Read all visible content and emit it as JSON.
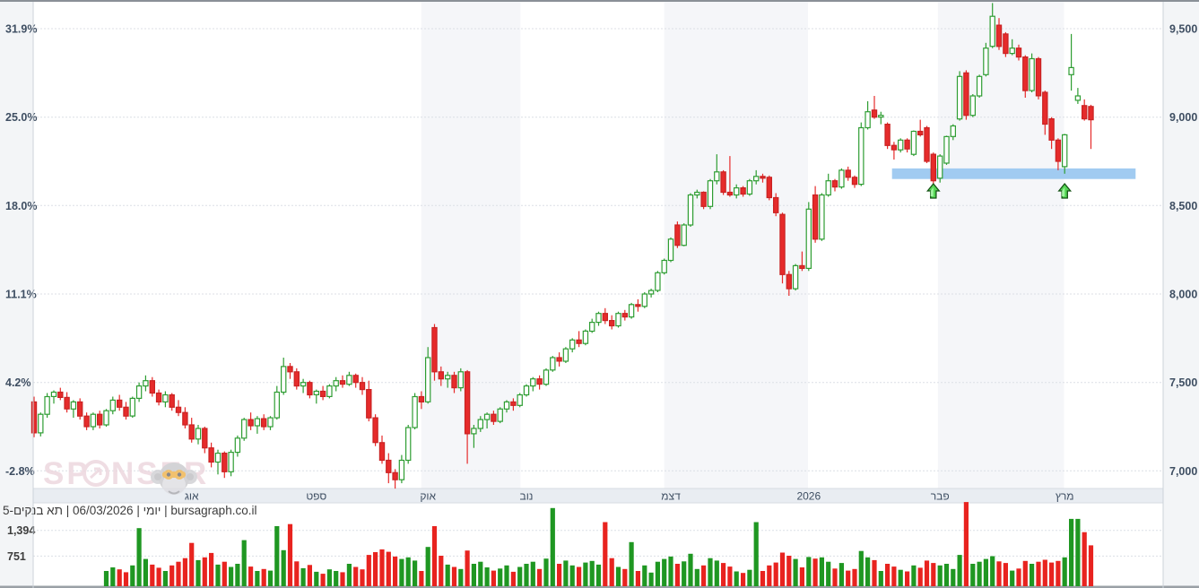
{
  "watermark": {
    "brand": "SPONSER",
    "mascot": "monkey-logo"
  },
  "footer": {
    "info_line": "יומי | 06/03/2026 | תא בנקים-5 | bursagraph.co.il"
  },
  "colors": {
    "up_green": "#2e9d32",
    "down_red": "#e62b2b",
    "down_red_dark": "#c92222",
    "vol_green": "#1f9722",
    "vol_red": "#e8231f",
    "support_blue": "#9cc8f0",
    "month_shade": "#f5f6f9",
    "margin_gray": "#f3f5f7",
    "axis_strip": "#e9edf2",
    "grid": "#dcdfe5",
    "axis_text": "#3e4e62",
    "footer_text": "#3c3c3c",
    "watermark_pink": "#ecd5dd"
  },
  "chart_data": {
    "type": "candlestick+volume",
    "instrument": "תא בנקים-5",
    "interval": "יומי",
    "as_of_date": "06/03/2026",
    "source": "bursagraph.co.il",
    "left_axis_percent": [
      {
        "label": "31.9%",
        "value": 9500
      },
      {
        "label": "25.0%",
        "value": 9000
      },
      {
        "label": "18.0%",
        "value": 8500
      },
      {
        "label": "11.1%",
        "value": 8000
      },
      {
        "label": "4.2%",
        "value": 7500
      },
      {
        "label": "-2.8%",
        "value": 7000
      }
    ],
    "right_axis_price": [
      {
        "label": "9,500",
        "value": 9500
      },
      {
        "label": "9,000",
        "value": 9000
      },
      {
        "label": "8,500",
        "value": 8500
      },
      {
        "label": "8,000",
        "value": 8000
      },
      {
        "label": "7,500",
        "value": 7500
      },
      {
        "label": "7,000",
        "value": 7000
      }
    ],
    "volume_axis": [
      {
        "label": "1,394",
        "value": 1394
      },
      {
        "label": "751",
        "value": 751
      }
    ],
    "x_axis_months": [
      {
        "label": "אוג",
        "index": 24
      },
      {
        "label": "ספט",
        "index": 43
      },
      {
        "label": "אוק",
        "index": 60
      },
      {
        "label": "נוב",
        "index": 75
      },
      {
        "label": "דצמ",
        "index": 97
      },
      {
        "label": "2026",
        "index": 118
      },
      {
        "label": "פבר",
        "index": 138
      },
      {
        "label": "מרץ",
        "index": 157
      }
    ],
    "shaded_month_bands": [
      [
        59.5,
        74.6
      ],
      [
        96.5,
        118.4
      ],
      [
        138.2,
        157.4
      ]
    ],
    "support_zone": {
      "price_top": 8710,
      "price_bottom": 8650,
      "start_index": 130.7,
      "end_index": 167.8
    },
    "signal_arrows": {
      "indices": [
        137,
        157
      ]
    },
    "volume_first_index": 11,
    "candles_format": [
      "open",
      "high",
      "low",
      "close",
      "volume"
    ],
    "candles": [
      [
        7390,
        7420,
        7190,
        7215,
        760
      ],
      [
        7215,
        7330,
        7195,
        7320,
        830
      ],
      [
        7320,
        7440,
        7300,
        7420,
        520
      ],
      [
        7420,
        7455,
        7380,
        7445,
        360
      ],
      [
        7445,
        7470,
        7400,
        7415,
        640
      ],
      [
        7415,
        7445,
        7330,
        7350,
        410
      ],
      [
        7350,
        7400,
        7300,
        7390,
        300
      ],
      [
        7390,
        7410,
        7290,
        7310,
        560
      ],
      [
        7310,
        7330,
        7230,
        7250,
        640
      ],
      [
        7250,
        7330,
        7230,
        7320,
        450
      ],
      [
        7320,
        7340,
        7240,
        7260,
        540
      ],
      [
        7260,
        7350,
        7250,
        7340,
        380
      ],
      [
        7340,
        7420,
        7320,
        7400,
        470
      ],
      [
        7400,
        7430,
        7340,
        7360,
        420
      ],
      [
        7360,
        7390,
        7290,
        7310,
        350
      ],
      [
        7310,
        7420,
        7300,
        7410,
        520
      ],
      [
        7410,
        7500,
        7390,
        7480,
        1450
      ],
      [
        7480,
        7540,
        7450,
        7510,
        680
      ],
      [
        7510,
        7530,
        7420,
        7440,
        540
      ],
      [
        7440,
        7460,
        7370,
        7390,
        460
      ],
      [
        7390,
        7450,
        7360,
        7430,
        380
      ],
      [
        7430,
        7440,
        7340,
        7360,
        520
      ],
      [
        7360,
        7400,
        7310,
        7330,
        610
      ],
      [
        7330,
        7360,
        7240,
        7260,
        700
      ],
      [
        7260,
        7300,
        7160,
        7180,
        1080
      ],
      [
        7180,
        7260,
        7150,
        7240,
        650
      ],
      [
        7240,
        7250,
        7100,
        7130,
        720
      ],
      [
        7130,
        7160,
        7020,
        7050,
        830
      ],
      [
        7050,
        7120,
        6980,
        7100,
        540
      ],
      [
        7100,
        7110,
        6960,
        6995,
        610
      ],
      [
        6995,
        7120,
        6970,
        7105,
        480
      ],
      [
        7105,
        7200,
        7080,
        7185,
        560
      ],
      [
        7185,
        7300,
        7170,
        7290,
        1150
      ],
      [
        7290,
        7330,
        7230,
        7255,
        490
      ],
      [
        7255,
        7310,
        7210,
        7295,
        380
      ],
      [
        7295,
        7320,
        7230,
        7250,
        430
      ],
      [
        7250,
        7310,
        7230,
        7300,
        390
      ],
      [
        7300,
        7480,
        7290,
        7445,
        1500
      ],
      [
        7445,
        7640,
        7430,
        7590,
        900
      ],
      [
        7590,
        7610,
        7520,
        7560,
        1550
      ],
      [
        7560,
        7580,
        7460,
        7480,
        620
      ],
      [
        7480,
        7520,
        7440,
        7500,
        450
      ],
      [
        7500,
        7510,
        7410,
        7430,
        530
      ],
      [
        7430,
        7460,
        7380,
        7450,
        360
      ],
      [
        7450,
        7480,
        7400,
        7420,
        310
      ],
      [
        7420,
        7490,
        7410,
        7480,
        420
      ],
      [
        7480,
        7530,
        7450,
        7510,
        380
      ],
      [
        7510,
        7540,
        7470,
        7490,
        350
      ],
      [
        7490,
        7560,
        7480,
        7540,
        560
      ],
      [
        7540,
        7550,
        7470,
        7500,
        480
      ],
      [
        7500,
        7530,
        7430,
        7460,
        420
      ],
      [
        7460,
        7510,
        7280,
        7300,
        780
      ],
      [
        7300,
        7320,
        7140,
        7160,
        850
      ],
      [
        7160,
        7200,
        7040,
        7060,
        920
      ],
      [
        7060,
        7100,
        6930,
        6990,
        860
      ],
      [
        6990,
        7010,
        6900,
        6950,
        740
      ],
      [
        6950,
        7090,
        6930,
        7060,
        680
      ],
      [
        7060,
        7260,
        7040,
        7245,
        720
      ],
      [
        7245,
        7440,
        7235,
        7420,
        640
      ],
      [
        7420,
        7450,
        7350,
        7390,
        380
      ],
      [
        7390,
        7700,
        7380,
        7640,
        980
      ],
      [
        7810,
        7830,
        7510,
        7560,
        1500
      ],
      [
        7560,
        7590,
        7480,
        7520,
        760
      ],
      [
        7520,
        7560,
        7470,
        7540,
        540
      ],
      [
        7540,
        7560,
        7440,
        7470,
        480
      ],
      [
        7470,
        7580,
        7450,
        7560,
        430
      ],
      [
        7560,
        7570,
        7040,
        7210,
        890
      ],
      [
        7210,
        7260,
        7130,
        7240,
        560
      ],
      [
        7240,
        7310,
        7220,
        7290,
        610
      ],
      [
        7290,
        7330,
        7240,
        7320,
        470
      ],
      [
        7320,
        7340,
        7260,
        7280,
        390
      ],
      [
        7280,
        7360,
        7270,
        7350,
        440
      ],
      [
        7350,
        7400,
        7330,
        7390,
        520
      ],
      [
        7390,
        7410,
        7340,
        7370,
        360
      ],
      [
        7370,
        7440,
        7360,
        7430,
        480
      ],
      [
        7430,
        7490,
        7420,
        7480,
        560
      ],
      [
        7480,
        7530,
        7450,
        7520,
        610
      ],
      [
        7520,
        7540,
        7460,
        7490,
        430
      ],
      [
        7490,
        7580,
        7480,
        7570,
        690
      ],
      [
        7570,
        7650,
        7560,
        7640,
        1950
      ],
      [
        7640,
        7670,
        7590,
        7620,
        560
      ],
      [
        7620,
        7700,
        7610,
        7690,
        640
      ],
      [
        7690,
        7750,
        7670,
        7740,
        520
      ],
      [
        7740,
        7790,
        7700,
        7720,
        480
      ],
      [
        7720,
        7800,
        7710,
        7790,
        590
      ],
      [
        7790,
        7860,
        7780,
        7840,
        630
      ],
      [
        7840,
        7900,
        7820,
        7890,
        540
      ],
      [
        7890,
        7920,
        7830,
        7850,
        1600
      ],
      [
        7850,
        7880,
        7800,
        7820,
        700
      ],
      [
        7820,
        7900,
        7810,
        7890,
        480
      ],
      [
        7890,
        7910,
        7850,
        7870,
        430
      ],
      [
        7870,
        7950,
        7860,
        7940,
        1100
      ],
      [
        7940,
        7970,
        7900,
        7930,
        380
      ],
      [
        7930,
        8010,
        7920,
        8000,
        520
      ],
      [
        8000,
        8030,
        7980,
        8020,
        340
      ],
      [
        8020,
        8130,
        8010,
        8120,
        610
      ],
      [
        8120,
        8200,
        8110,
        8190,
        680
      ],
      [
        8190,
        8320,
        8180,
        8310,
        740
      ],
      [
        8390,
        8410,
        8260,
        8275,
        560
      ],
      [
        8275,
        8400,
        8270,
        8390,
        620
      ],
      [
        8390,
        8570,
        8380,
        8560,
        810
      ],
      [
        8560,
        8590,
        8540,
        8575,
        430
      ],
      [
        8575,
        8580,
        8480,
        8495,
        520
      ],
      [
        8495,
        8650,
        8480,
        8640,
        700
      ],
      [
        8640,
        8790,
        8620,
        8690,
        640
      ],
      [
        8690,
        8700,
        8560,
        8575,
        580
      ],
      [
        8575,
        8780,
        8550,
        8560,
        490
      ],
      [
        8560,
        8620,
        8540,
        8600,
        370
      ],
      [
        8600,
        8610,
        8550,
        8565,
        330
      ],
      [
        8565,
        8650,
        8555,
        8640,
        410
      ],
      [
        8640,
        8700,
        8620,
        8665,
        1600
      ],
      [
        8665,
        8680,
        8630,
        8655,
        380
      ],
      [
        8660,
        8670,
        8530,
        8545,
        520
      ],
      [
        8545,
        8570,
        8440,
        8460,
        590
      ],
      [
        8450,
        8460,
        8060,
        8110,
        840
      ],
      [
        8110,
        8130,
        7990,
        8030,
        760
      ],
      [
        8030,
        8170,
        8020,
        8160,
        680
      ],
      [
        8160,
        8240,
        8130,
        8145,
        470
      ],
      [
        8145,
        8520,
        8130,
        8480,
        730
      ],
      [
        8560,
        8610,
        8290,
        8310,
        690
      ],
      [
        8310,
        8570,
        8300,
        8560,
        720
      ],
      [
        8560,
        8680,
        8550,
        8640,
        610
      ],
      [
        8640,
        8650,
        8580,
        8605,
        440
      ],
      [
        8605,
        8710,
        8595,
        8700,
        580
      ],
      [
        8700,
        8720,
        8640,
        8660,
        390
      ],
      [
        8660,
        8670,
        8600,
        8620,
        430
      ],
      [
        8620,
        8970,
        8610,
        8940,
        880
      ],
      [
        8940,
        9090,
        8930,
        9030,
        720
      ],
      [
        9040,
        9120,
        8990,
        9000,
        650
      ],
      [
        9000,
        9030,
        8960,
        9010,
        380
      ],
      [
        8960,
        8970,
        8820,
        8840,
        560
      ],
      [
        8840,
        8860,
        8760,
        8815,
        490
      ],
      [
        8815,
        8880,
        8800,
        8870,
        410
      ],
      [
        8870,
        8880,
        8800,
        8820,
        370
      ],
      [
        8790,
        8925,
        8780,
        8920,
        520
      ],
      [
        8920,
        8985,
        8890,
        8900,
        460
      ],
      [
        8940,
        8950,
        8740,
        8750,
        640
      ],
      [
        8790,
        8800,
        8610,
        8640,
        580
      ],
      [
        8655,
        8790,
        8630,
        8780,
        520
      ],
      [
        8740,
        8895,
        8730,
        8890,
        560
      ],
      [
        8890,
        8960,
        8870,
        8950,
        430
      ],
      [
        8990,
        9260,
        8980,
        9230,
        780
      ],
      [
        9250,
        9265,
        8985,
        9010,
        2100
      ],
      [
        9010,
        9130,
        9000,
        9120,
        560
      ],
      [
        9120,
        9240,
        9110,
        9230,
        610
      ],
      [
        9240,
        9420,
        9230,
        9390,
        680
      ],
      [
        9400,
        9645,
        9390,
        9570,
        750
      ],
      [
        9520,
        9560,
        9380,
        9400,
        620
      ],
      [
        9470,
        9480,
        9340,
        9360,
        580
      ],
      [
        9360,
        9440,
        9350,
        9390,
        390
      ],
      [
        9390,
        9410,
        9320,
        9340,
        440
      ],
      [
        9340,
        9350,
        9110,
        9150,
        630
      ],
      [
        9150,
        9360,
        9140,
        9330,
        560
      ],
      [
        9330,
        9340,
        9100,
        9120,
        610
      ],
      [
        9140,
        9150,
        8900,
        8960,
        660
      ],
      [
        8990,
        9000,
        8820,
        8870,
        590
      ],
      [
        8870,
        8880,
        8700,
        8750,
        630
      ],
      [
        8720,
        8905,
        8680,
        8900,
        720
      ],
      [
        9240,
        9470,
        9150,
        9280,
        1680
      ],
      [
        9095,
        9165,
        9075,
        9120,
        1680
      ],
      [
        9065,
        9100,
        8980,
        8990,
        1350
      ],
      [
        9060,
        9070,
        8820,
        8985,
        1020
      ]
    ]
  }
}
